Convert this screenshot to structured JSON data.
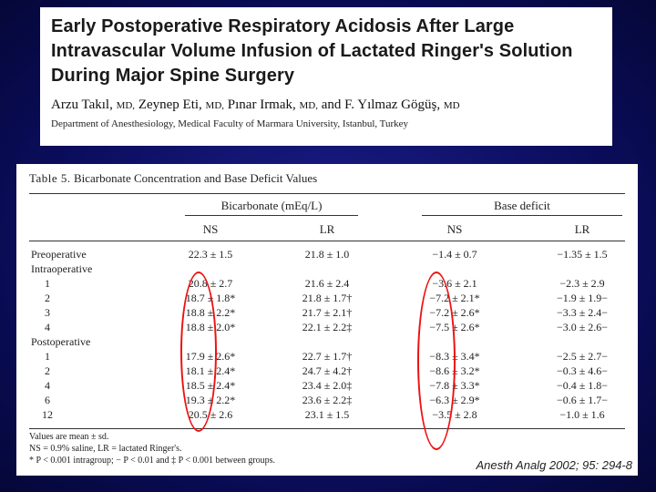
{
  "paper": {
    "title_lines": [
      "Early Postoperative Respiratory Acidosis After Large",
      "Intravascular Volume Infusion of Lactated Ringer's Solution",
      "During Major Spine Surgery"
    ],
    "authors": [
      {
        "name": "Arzu Takıl,",
        "degree": "MD,"
      },
      {
        "name": "Zeynep Eti,",
        "degree": "MD,"
      },
      {
        "name": "Pınar Irmak,",
        "degree": "MD,"
      },
      {
        "name": "and F. Yılmaz Gögüş,",
        "degree": "MD"
      }
    ],
    "affiliation": "Department of Anesthesiology, Medical Faculty of Marmara University, Istanbul, Turkey"
  },
  "table": {
    "caption_label": "Table 5.",
    "caption_text": "Bicarbonate Concentration and Base Deficit Values",
    "group_headers": [
      "Bicarbonate (mEq/L)",
      "Base deficit"
    ],
    "col_headers": [
      "NS",
      "LR",
      "NS",
      "LR"
    ],
    "rows": [
      {
        "label": "Preoperative",
        "indent": false,
        "cells": [
          "22.3 ± 1.5",
          "21.8 ± 1.0",
          "−1.4 ± 0.7",
          "−1.35 ± 1.5"
        ]
      },
      {
        "label": "Intraoperative",
        "indent": false,
        "cells": [
          "",
          "",
          "",
          ""
        ]
      },
      {
        "label": "1",
        "indent": true,
        "cells": [
          "20.8 ± 2.7",
          "21.6 ± 2.4",
          "−3.6 ± 2.1",
          "−2.3 ± 2.9"
        ]
      },
      {
        "label": "2",
        "indent": true,
        "cells": [
          "18.7 ± 1.8*",
          "21.8 ± 1.7†",
          "−7.2 ± 2.1*",
          "−1.9 ± 1.9−"
        ]
      },
      {
        "label": "3",
        "indent": true,
        "cells": [
          "18.8 ± 2.2*",
          "21.7 ± 2.1†",
          "−7.2 ± 2.6*",
          "−3.3 ± 2.4−"
        ]
      },
      {
        "label": "4",
        "indent": true,
        "cells": [
          "18.8 ± 2.0*",
          "22.1 ± 2.2‡",
          "−7.5 ± 2.6*",
          "−3.0 ± 2.6−"
        ]
      },
      {
        "label": "Postoperative",
        "indent": false,
        "cells": [
          "",
          "",
          "",
          ""
        ]
      },
      {
        "label": "1",
        "indent": true,
        "cells": [
          "17.9 ± 2.6*",
          "22.7 ± 1.7†",
          "−8.3 ± 3.4*",
          "−2.5 ± 2.7−"
        ]
      },
      {
        "label": "2",
        "indent": true,
        "cells": [
          "18.1 ± 2.4*",
          "24.7 ± 4.2†",
          "−8.6 ± 3.2*",
          "−0.3 ± 4.6−"
        ]
      },
      {
        "label": "4",
        "indent": true,
        "cells": [
          "18.5 ± 2.4*",
          "23.4 ± 2.0‡",
          "−7.8 ± 3.3*",
          "−0.4 ± 1.8−"
        ]
      },
      {
        "label": "6",
        "indent": true,
        "cells": [
          "19.3 ± 2.2*",
          "23.6 ± 2.2‡",
          "−6.3 ± 2.9*",
          "−0.6 ± 1.7−"
        ]
      },
      {
        "label": "12",
        "indent": true,
        "cells": [
          "20.5 ± 2.6",
          "23.1 ± 1.5",
          "−3.5 ± 2.8",
          "−1.0 ± 1.6"
        ]
      }
    ],
    "footnotes": [
      "Values are mean ± sd.",
      "NS = 0.9% saline, LR = lactated Ringer's.",
      "* P < 0.001 intragroup; − P < 0.01 and ‡ P < 0.001 between groups."
    ]
  },
  "citation": "Anesth Analg 2002; 95: 294-8",
  "colors": {
    "background": "#0b0d5e",
    "highlight": "#e11111"
  }
}
